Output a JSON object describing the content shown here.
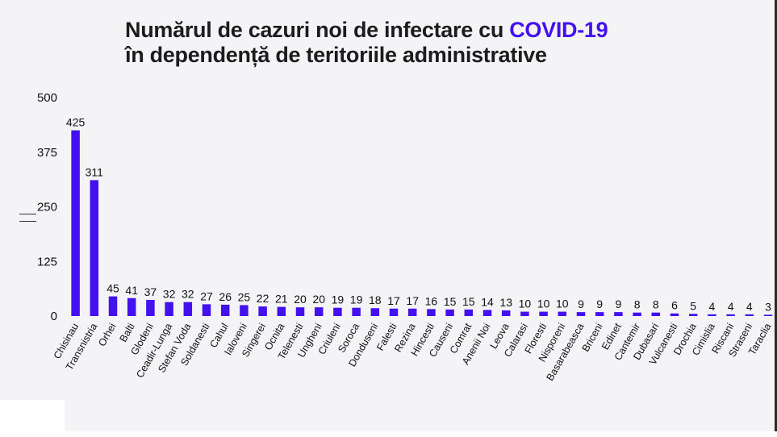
{
  "title": {
    "line1_prefix": "Numărul de cazuri noi de infectare cu ",
    "line1_accent": "COVID-19",
    "line2": "în dependență de teritoriile administrative"
  },
  "colors": {
    "bar": "#4311ee",
    "accent": "#4311ee",
    "text": "#1c1c1c",
    "background": "#f4f4f6"
  },
  "chart_data": {
    "type": "bar",
    "title": "Numărul de cazuri noi de infectare cu COVID-19 în dependență de teritoriile administrative",
    "xlabel": "",
    "ylabel": "",
    "ylim": [
      0,
      500
    ],
    "yticks": [
      0,
      125,
      250,
      375,
      500
    ],
    "grid": false,
    "categories": [
      "Chisinau",
      "Transnistria",
      "Orhei",
      "Balti",
      "Glodeni",
      "Ceadir-Lunga",
      "Stefan Voda",
      "Soldanesti",
      "Cahul",
      "Ialoveni",
      "Singerei",
      "Ocnita",
      "Telenesti",
      "Ungheni",
      "Criuleni",
      "Soroca",
      "Donduseni",
      "Falesti",
      "Rezina",
      "Hincesti",
      "Causeni",
      "Comrat",
      "Anenii Noi",
      "Leova",
      "Calarasi",
      "Floresti",
      "Nisporeni",
      "Basarabeasca",
      "Briceni",
      "Edinet",
      "Cantemir",
      "Dubasari",
      "Vulcanesti",
      "Drochia",
      "Cimislia",
      "Riscani",
      "Straseni",
      "Taraclia"
    ],
    "values": [
      425,
      311,
      45,
      41,
      37,
      32,
      32,
      27,
      26,
      25,
      22,
      21,
      20,
      20,
      19,
      19,
      18,
      17,
      17,
      16,
      15,
      15,
      14,
      13,
      10,
      10,
      10,
      9,
      9,
      9,
      8,
      8,
      6,
      5,
      4,
      4,
      4,
      3
    ]
  }
}
